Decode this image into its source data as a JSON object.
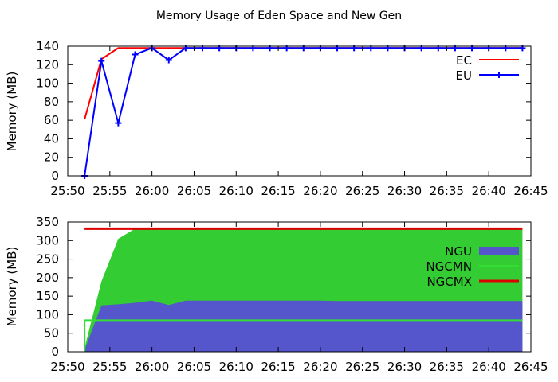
{
  "title": "Memory Usage of Eden Space and New Gen",
  "colors": {
    "ec": "#ff0000",
    "eu": "#0000ff",
    "ngu": "#5555cc",
    "ngc_fill": "#33cc33",
    "ngcmn": "#33dd33",
    "ngcmx": "#dd0000"
  },
  "chart_data": [
    {
      "type": "line",
      "title": "Memory Usage of Eden Space and New Gen",
      "xlabel": "",
      "ylabel": "Memory (MB)",
      "xlim": [
        "25:50",
        "26:45"
      ],
      "ylim": [
        0,
        140
      ],
      "xticks": [
        "25:50",
        "25:55",
        "26:00",
        "26:05",
        "26:10",
        "26:15",
        "26:20",
        "26:25",
        "26:30",
        "26:35",
        "26:40",
        "26:45"
      ],
      "yticks": [
        0,
        20,
        40,
        60,
        80,
        100,
        120,
        140
      ],
      "legend_position": "top-right",
      "x": [
        "25:52",
        "25:54",
        "25:56",
        "25:58",
        "26:00",
        "26:02",
        "26:04",
        "26:06",
        "26:08",
        "26:10",
        "26:12",
        "26:14",
        "26:16",
        "26:18",
        "26:20",
        "26:22",
        "26:24",
        "26:26",
        "26:28",
        "26:30",
        "26:32",
        "26:34",
        "26:36",
        "26:38",
        "26:40",
        "26:42",
        "26:44"
      ],
      "series": [
        {
          "name": "EC",
          "color": "#ff0000",
          "marker": "none",
          "values": [
            61,
            126,
            138,
            138,
            138,
            138,
            138,
            138,
            138,
            138,
            138,
            138,
            138,
            138,
            138,
            138,
            138,
            138,
            138,
            138,
            138,
            138,
            138,
            138,
            138,
            138,
            138
          ]
        },
        {
          "name": "EU",
          "color": "#0000ff",
          "marker": "plus",
          "values": [
            0,
            124,
            57,
            131,
            138,
            125,
            138,
            138,
            138,
            138,
            138,
            138,
            138,
            138,
            138,
            138,
            138,
            138,
            138,
            138,
            138,
            138,
            138,
            138,
            138,
            138,
            138
          ]
        }
      ]
    },
    {
      "type": "area",
      "title": "",
      "xlabel": "",
      "ylabel": "Memory (MB)",
      "xlim": [
        "25:50",
        "26:45"
      ],
      "ylim": [
        0,
        350
      ],
      "xticks": [
        "25:50",
        "25:55",
        "26:00",
        "26:05",
        "26:10",
        "26:15",
        "26:20",
        "26:25",
        "26:30",
        "26:35",
        "26:40",
        "26:45"
      ],
      "yticks": [
        0,
        50,
        100,
        150,
        200,
        250,
        300,
        350
      ],
      "legend_position": "right",
      "x": [
        "25:52",
        "25:54",
        "25:56",
        "25:58",
        "26:00",
        "26:02",
        "26:04",
        "26:06",
        "26:08",
        "26:10",
        "26:12",
        "26:14",
        "26:16",
        "26:18",
        "26:20",
        "26:22",
        "26:24",
        "26:26",
        "26:28",
        "26:30",
        "26:32",
        "26:34",
        "26:36",
        "26:38",
        "26:40",
        "26:42",
        "26:44"
      ],
      "capacity_values": [
        10,
        190,
        305,
        332,
        332,
        332,
        332,
        332,
        332,
        332,
        332,
        332,
        332,
        332,
        332,
        332,
        332,
        332,
        332,
        332,
        332,
        332,
        332,
        332,
        332,
        332,
        332
      ],
      "series": [
        {
          "name": "NGU",
          "color": "#5555cc",
          "style": "filled",
          "values": [
            5,
            125,
            128,
            132,
            138,
            126,
            138,
            138,
            138,
            138,
            138,
            138,
            138,
            138,
            138,
            137,
            137,
            137,
            137,
            137,
            137,
            137,
            137,
            137,
            137,
            137,
            137
          ]
        },
        {
          "name": "NGCMN",
          "color": "#33dd33",
          "style": "line",
          "values": [
            85,
            85,
            85,
            85,
            85,
            85,
            85,
            85,
            85,
            85,
            85,
            85,
            85,
            85,
            85,
            85,
            85,
            85,
            85,
            85,
            85,
            85,
            85,
            85,
            85,
            85,
            85
          ]
        },
        {
          "name": "NGCMX",
          "color": "#dd0000",
          "style": "line",
          "values": [
            332,
            332,
            332,
            332,
            332,
            332,
            332,
            332,
            332,
            332,
            332,
            332,
            332,
            332,
            332,
            332,
            332,
            332,
            332,
            332,
            332,
            332,
            332,
            332,
            332,
            332,
            332
          ]
        }
      ]
    }
  ]
}
